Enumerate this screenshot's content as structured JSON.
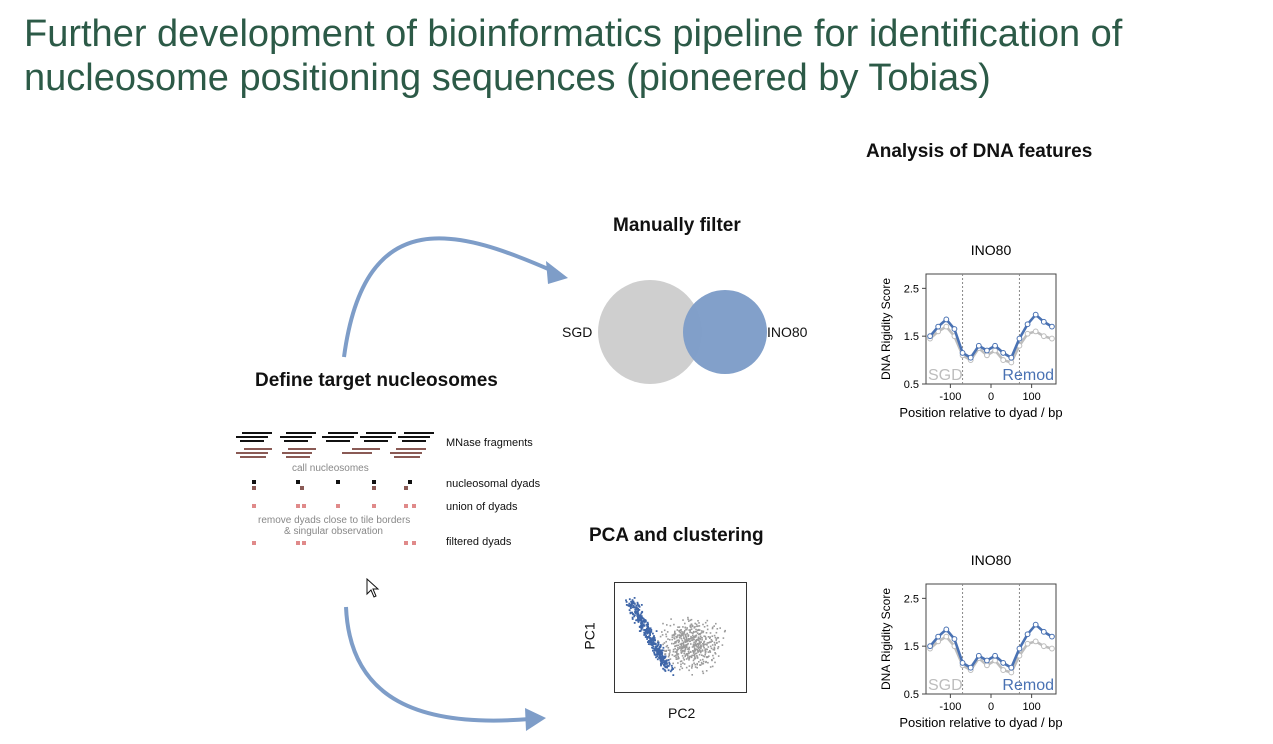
{
  "slide": {
    "title_line1": "Further development of bioinformatics pipeline for identification of",
    "title_line2": "nucleosome positioning sequences (pioneered by Tobias)"
  },
  "sections": {
    "analysis_heading": "Analysis of DNA features",
    "manual_filter_heading": "Manually filter",
    "define_heading": "Define target nucleosomes",
    "pca_heading": "PCA and clustering"
  },
  "venn": {
    "left_label": "SGD",
    "right_label": "INO80",
    "left_color": "#cfcfcf",
    "right_color": "#7e9dc8"
  },
  "pipeline": {
    "mnase_label": "MNase fragments",
    "call_label": "call nucleosomes",
    "dyads_label": "nucleosomal dyads",
    "union_label": "union of dyads",
    "remove_label_1": "remove dyads close to tile borders",
    "remove_label_2": "& singular observation",
    "filtered_label": "filtered dyads"
  },
  "pca": {
    "xlabel": "PC2",
    "ylabel": "PC1"
  },
  "chart_data": [
    {
      "type": "line",
      "title": "INO80",
      "xlabel": "Position relative to dyad / bp",
      "ylabel": "DNA Rigidity Score",
      "xticks": [
        "-100",
        "0",
        "100"
      ],
      "yticks": [
        "0.5",
        "1.5",
        "2.5"
      ],
      "xlim": [
        -160,
        160
      ],
      "ylim": [
        0.5,
        2.8
      ],
      "x": [
        -150,
        -130,
        -110,
        -90,
        -70,
        -50,
        -30,
        -10,
        10,
        30,
        50,
        70,
        90,
        110,
        130,
        150
      ],
      "series": [
        {
          "name": "SGD",
          "color": "#bdbdbd",
          "values": [
            1.45,
            1.6,
            1.7,
            1.5,
            1.1,
            1.0,
            1.25,
            1.1,
            1.2,
            1.0,
            0.95,
            1.3,
            1.55,
            1.6,
            1.5,
            1.45
          ]
        },
        {
          "name": "Remod",
          "color": "#4a72b3",
          "values": [
            1.5,
            1.7,
            1.85,
            1.65,
            1.15,
            1.05,
            1.3,
            1.2,
            1.3,
            1.15,
            1.05,
            1.45,
            1.75,
            1.95,
            1.8,
            1.7
          ]
        }
      ]
    },
    {
      "type": "line",
      "title": "INO80",
      "xlabel": "Position relative to dyad / bp",
      "ylabel": "DNA Rigidity Score",
      "xticks": [
        "-100",
        "0",
        "100"
      ],
      "yticks": [
        "0.5",
        "1.5",
        "2.5"
      ],
      "xlim": [
        -160,
        160
      ],
      "ylim": [
        0.5,
        2.8
      ],
      "x": [
        -150,
        -130,
        -110,
        -90,
        -70,
        -50,
        -30,
        -10,
        10,
        30,
        50,
        70,
        90,
        110,
        130,
        150
      ],
      "series": [
        {
          "name": "SGD",
          "color": "#bdbdbd",
          "values": [
            1.45,
            1.6,
            1.7,
            1.5,
            1.1,
            1.0,
            1.25,
            1.1,
            1.2,
            1.0,
            0.95,
            1.3,
            1.55,
            1.6,
            1.5,
            1.45
          ]
        },
        {
          "name": "Remod",
          "color": "#4a72b3",
          "values": [
            1.5,
            1.7,
            1.85,
            1.65,
            1.15,
            1.05,
            1.3,
            1.2,
            1.3,
            1.15,
            1.05,
            1.45,
            1.75,
            1.95,
            1.8,
            1.7
          ]
        }
      ]
    }
  ]
}
